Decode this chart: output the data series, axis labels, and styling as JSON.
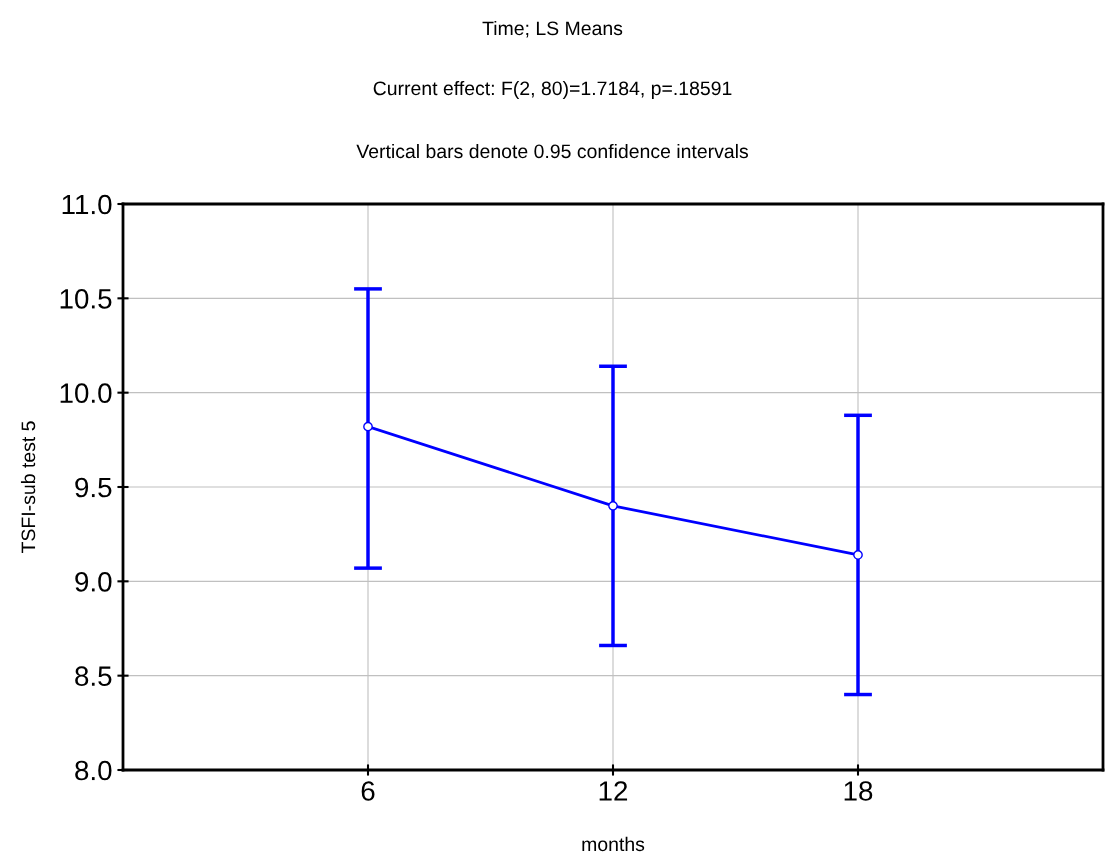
{
  "chart_data": {
    "type": "line",
    "title": "Time; LS Means",
    "subtitle": "Current effect: F(2, 80)=1.7184, p=.18591",
    "annotations": [
      "Vertical bars denote 0.95 confidence intervals"
    ],
    "xlabel": "months",
    "ylabel": "TSFI-sub test 5",
    "x": [
      6,
      12,
      18
    ],
    "values": [
      9.82,
      9.4,
      9.14
    ],
    "errors": [
      [
        9.07,
        10.55
      ],
      [
        8.66,
        10.14
      ],
      [
        8.4,
        9.88
      ]
    ],
    "color": "#0000ff",
    "marker": "circle",
    "line_style": "solid",
    "xlim": [
      0,
      24
    ],
    "xticks": [
      6,
      12,
      18
    ],
    "ylim": [
      8.0,
      11.0
    ],
    "yticks": [
      {
        "value": 8.0,
        "label": "8.0"
      },
      {
        "value": 8.5,
        "label": "8.5"
      },
      {
        "value": 9.0,
        "label": "9.0"
      },
      {
        "value": 9.5,
        "label": "9.5"
      },
      {
        "value": 10.0,
        "label": "10.0"
      },
      {
        "value": 10.5,
        "label": "10.5"
      },
      {
        "value": 11.0,
        "label": "11.0"
      }
    ],
    "grid": true,
    "legend": false
  }
}
